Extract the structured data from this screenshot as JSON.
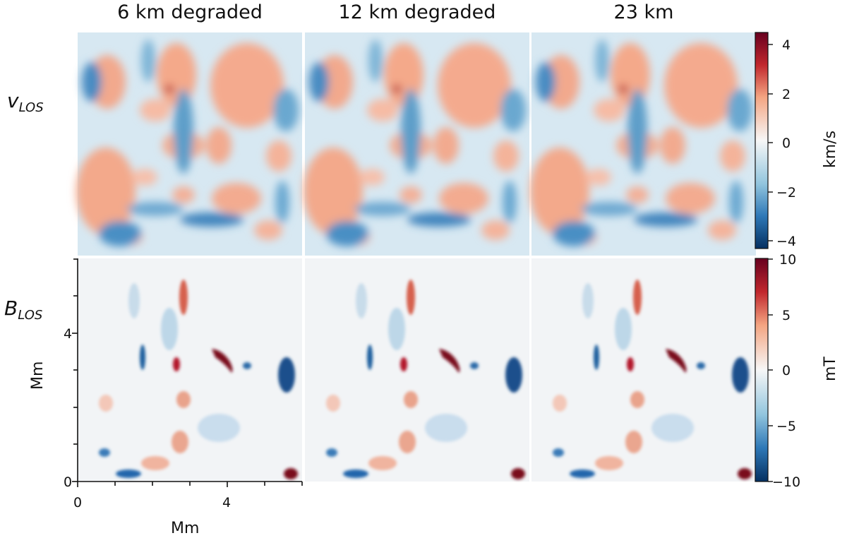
{
  "columns": [
    "6 km degraded",
    "12 km degraded",
    "23 km"
  ],
  "rows": [
    {
      "symbol": "v",
      "subscript": "LOS"
    },
    {
      "symbol": "B",
      "subscript": "LOS"
    }
  ],
  "axes": {
    "xlabel": "Mm",
    "ylabel": "Mm",
    "x_ticks": [
      "0",
      "4"
    ],
    "y_ticks": [
      "0",
      "4"
    ]
  },
  "colorbars": [
    {
      "unit": "km/s",
      "ticks": [
        "4",
        "2",
        "0",
        "−2",
        "−4"
      ],
      "range": [
        -4.5,
        4.5
      ],
      "colormap": "RdBu_r"
    },
    {
      "unit": "mT",
      "ticks": [
        "10",
        "5",
        "0",
        "−5",
        "−10"
      ],
      "range": [
        -10,
        10
      ],
      "colormap": "RdBu_r"
    }
  ],
  "colors": {
    "red": "#8b0a1e",
    "light_red": "#f4a98a",
    "white": "#f7f7f7",
    "light_blue": "#92c5de",
    "blue": "#08306b"
  }
}
